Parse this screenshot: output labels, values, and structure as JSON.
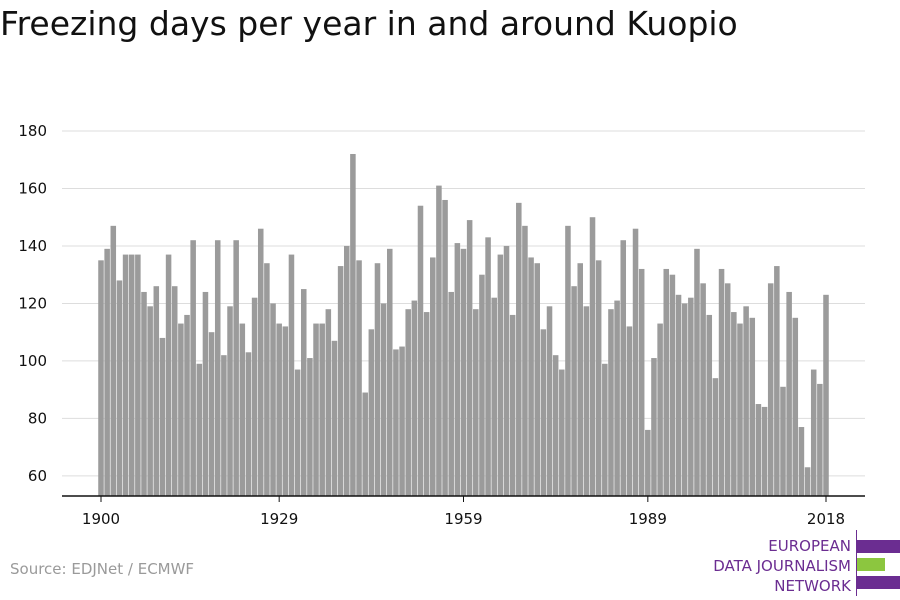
{
  "title": "Freezing days per year in and around Kuopio",
  "source": "Source: EDJNet / ECMWF",
  "logo": {
    "lines": [
      "EUROPEAN",
      "DATA JOURNALISM",
      "NETWORK"
    ],
    "colors": {
      "purple": "#6b2d91",
      "green": "#8cc63f"
    }
  },
  "colors": {
    "bar": "#9b9b9b",
    "grid": "#dddddd",
    "axis": "#111111",
    "text": "#111111"
  },
  "chart_data": {
    "type": "bar",
    "title": "Freezing days per year in and around Kuopio",
    "xlabel": "",
    "ylabel": "",
    "ylim": [
      53,
      180
    ],
    "yticks": [
      60,
      80,
      100,
      120,
      140,
      160,
      180
    ],
    "xticks": [
      1900,
      1929,
      1959,
      1989,
      2018
    ],
    "grid": true,
    "x_start": 1900,
    "years": [
      1900,
      1901,
      1902,
      1903,
      1904,
      1905,
      1906,
      1907,
      1908,
      1909,
      1910,
      1911,
      1912,
      1913,
      1914,
      1915,
      1916,
      1917,
      1918,
      1919,
      1920,
      1921,
      1922,
      1923,
      1924,
      1925,
      1926,
      1927,
      1928,
      1929,
      1930,
      1931,
      1932,
      1933,
      1934,
      1935,
      1936,
      1937,
      1938,
      1939,
      1940,
      1941,
      1942,
      1943,
      1944,
      1945,
      1946,
      1947,
      1948,
      1949,
      1950,
      1951,
      1952,
      1953,
      1954,
      1955,
      1956,
      1957,
      1958,
      1959,
      1960,
      1961,
      1962,
      1963,
      1964,
      1965,
      1966,
      1967,
      1968,
      1969,
      1970,
      1971,
      1972,
      1973,
      1974,
      1975,
      1976,
      1977,
      1978,
      1979,
      1980,
      1981,
      1982,
      1983,
      1984,
      1985,
      1986,
      1987,
      1988,
      1989,
      1990,
      1991,
      1992,
      1993,
      1994,
      1995,
      1996,
      1997,
      1998,
      1999,
      2000,
      2001,
      2002,
      2003,
      2004,
      2005,
      2006,
      2007,
      2008,
      2009,
      2010,
      2011,
      2012,
      2013,
      2014,
      2015,
      2016,
      2017,
      2018
    ],
    "values": [
      135,
      139,
      147,
      128,
      137,
      137,
      137,
      124,
      119,
      126,
      108,
      137,
      126,
      113,
      116,
      142,
      99,
      124,
      110,
      142,
      102,
      119,
      142,
      113,
      103,
      122,
      146,
      134,
      120,
      113,
      112,
      137,
      97,
      125,
      101,
      113,
      113,
      118,
      107,
      133,
      140,
      172,
      135,
      89,
      111,
      134,
      120,
      139,
      104,
      105,
      118,
      121,
      154,
      117,
      136,
      161,
      156,
      124,
      141,
      139,
      149,
      118,
      130,
      143,
      122,
      137,
      140,
      116,
      155,
      147,
      136,
      134,
      111,
      119,
      102,
      97,
      147,
      126,
      134,
      119,
      150,
      135,
      99,
      118,
      121,
      142,
      112,
      146,
      132,
      76,
      101,
      113,
      132,
      130,
      123,
      120,
      122,
      139,
      127,
      116,
      94,
      132,
      127,
      117,
      113,
      119,
      115,
      85,
      84,
      127,
      133,
      91,
      124,
      115,
      77,
      63,
      97,
      92,
      123
    ]
  }
}
